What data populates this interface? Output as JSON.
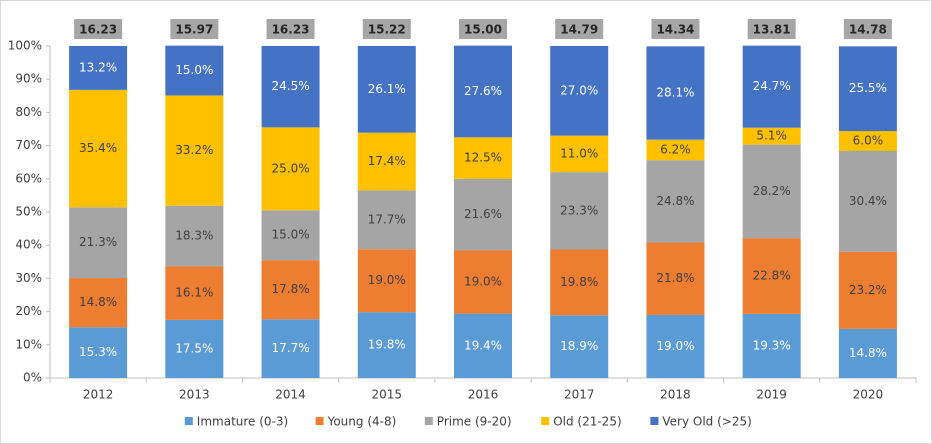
{
  "chart_data": {
    "type": "stacked_bar_percent",
    "categories": [
      "2012",
      "2013",
      "2014",
      "2015",
      "2016",
      "2017",
      "2018",
      "2019",
      "2020"
    ],
    "annotations": [
      "16.23",
      "15.97",
      "16.23",
      "15.22",
      "15.00",
      "14.79",
      "14.34",
      "13.81",
      "14.78"
    ],
    "series": [
      {
        "name": "Immature (0-3)",
        "color": "#5b9bd5",
        "label_color": "#ffffff",
        "values": [
          15.3,
          17.5,
          17.7,
          19.8,
          19.4,
          18.9,
          19.0,
          19.3,
          14.8
        ],
        "value_labels": [
          "15.3%",
          "17.5%",
          "17.7%",
          "19.8%",
          "19.4%",
          "18.9%",
          "19.0%",
          "19.3%",
          "14.8%"
        ]
      },
      {
        "name": "Young (4-8)",
        "color": "#ed7d31",
        "label_color": "#404040",
        "values": [
          14.8,
          16.1,
          17.8,
          19.0,
          19.0,
          19.8,
          21.8,
          22.8,
          23.2
        ],
        "value_labels": [
          "14.8%",
          "16.1%",
          "17.8%",
          "19.0%",
          "19.0%",
          "19.8%",
          "21.8%",
          "22.8%",
          "23.2%"
        ]
      },
      {
        "name": "Prime (9-20)",
        "color": "#a5a5a5",
        "label_color": "#404040",
        "values": [
          21.3,
          18.3,
          15.0,
          17.7,
          21.6,
          23.3,
          24.8,
          28.2,
          30.4
        ],
        "value_labels": [
          "21.3%",
          "18.3%",
          "15.0%",
          "17.7%",
          "21.6%",
          "23.3%",
          "24.8%",
          "28.2%",
          "30.4%"
        ]
      },
      {
        "name": "Old (21-25)",
        "color": "#ffc000",
        "label_color": "#404040",
        "values": [
          35.4,
          33.2,
          25.0,
          17.4,
          12.5,
          11.0,
          6.2,
          5.1,
          6.0
        ],
        "value_labels": [
          "35.4%",
          "33.2%",
          "25.0%",
          "17.4%",
          "12.5%",
          "11.0%",
          "6.2%",
          "5.1%",
          "6.0%"
        ]
      },
      {
        "name": "Very Old (>25)",
        "color": "#4472c4",
        "label_color": "#ffffff",
        "values": [
          13.2,
          15.0,
          24.5,
          26.1,
          27.6,
          27.0,
          28.1,
          24.7,
          25.5
        ],
        "value_labels": [
          "13.2%",
          "15.0%",
          "24.5%",
          "26.1%",
          "27.6%",
          "27.0%",
          "28.1%",
          "24.7%",
          "25.5%"
        ]
      }
    ],
    "ylim": [
      0,
      100
    ],
    "yticks": [
      {
        "value": 0,
        "label": "0%"
      },
      {
        "value": 10,
        "label": "10%"
      },
      {
        "value": 20,
        "label": "20%"
      },
      {
        "value": 30,
        "label": "30%"
      },
      {
        "value": 40,
        "label": "40%"
      },
      {
        "value": 50,
        "label": "50%"
      },
      {
        "value": 60,
        "label": "60%"
      },
      {
        "value": 70,
        "label": "70%"
      },
      {
        "value": 80,
        "label": "80%"
      },
      {
        "value": 90,
        "label": "90%"
      },
      {
        "value": 100,
        "label": "100%"
      }
    ],
    "grid": false,
    "legend": "bottom"
  }
}
